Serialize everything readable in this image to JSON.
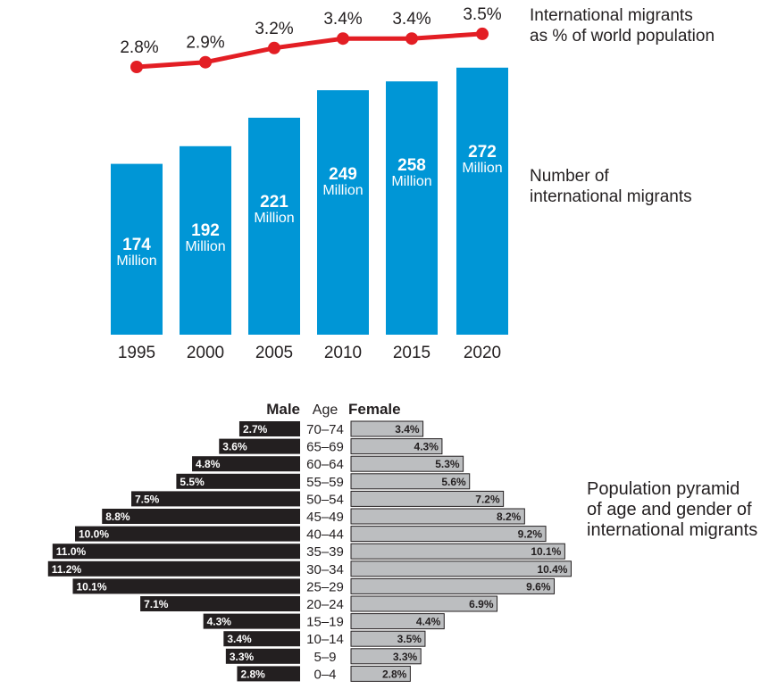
{
  "colors": {
    "bar": "#0096d6",
    "line": "#e31e24",
    "male": "#231f20",
    "female": "#bcbec0"
  },
  "chart_data": [
    {
      "type": "bar",
      "categories": [
        "1995",
        "2000",
        "2005",
        "2010",
        "2015",
        "2020"
      ],
      "values": [
        174,
        192,
        221,
        249,
        258,
        272
      ],
      "value_labels": [
        "174",
        "192",
        "221",
        "249",
        "258",
        "272"
      ],
      "unit_label": "Million",
      "series_label": "Number of international migrants",
      "ylim": [
        0,
        272
      ]
    },
    {
      "type": "line",
      "categories": [
        "1995",
        "2000",
        "2005",
        "2010",
        "2015",
        "2020"
      ],
      "values": [
        2.8,
        2.9,
        3.2,
        3.4,
        3.4,
        3.5
      ],
      "value_labels": [
        "2.8%",
        "2.9%",
        "3.2%",
        "3.4%",
        "3.4%",
        "3.5%"
      ],
      "series_label": "International migrants as % of world population"
    },
    {
      "type": "bar",
      "orientation": "horizontal-pyramid",
      "title": "Population pyramid of age and gender of international migrants",
      "male_header": "Male",
      "age_header": "Age",
      "female_header": "Female",
      "categories": [
        "70–74",
        "65–69",
        "60–64",
        "55–59",
        "50–54",
        "45–49",
        "40–44",
        "35–39",
        "30–34",
        "25–29",
        "20–24",
        "15–19",
        "10–14",
        "5–9",
        "0–4"
      ],
      "male": [
        2.7,
        3.6,
        4.8,
        5.5,
        7.5,
        8.8,
        10.0,
        11.0,
        11.2,
        10.1,
        7.1,
        4.3,
        3.4,
        3.3,
        2.8
      ],
      "female": [
        3.4,
        4.3,
        5.3,
        5.6,
        7.2,
        8.2,
        9.2,
        10.1,
        10.4,
        9.6,
        6.9,
        4.4,
        3.5,
        3.3,
        2.8
      ],
      "male_labels": [
        "2.7%",
        "3.6%",
        "4.8%",
        "5.5%",
        "7.5%",
        "8.8%",
        "10.0%",
        "11.0%",
        "11.2%",
        "10.1%",
        "7.1%",
        "4.3%",
        "3.4%",
        "3.3%",
        "2.8%"
      ],
      "female_labels": [
        "3.4%",
        "4.3%",
        "5.3%",
        "5.6%",
        "7.2%",
        "8.2%",
        "9.2%",
        "10.1%",
        "10.4%",
        "9.6%",
        "6.9%",
        "4.4%",
        "3.5%",
        "3.3%",
        "2.8%"
      ]
    }
  ],
  "labels": {
    "line_side": [
      "International migrants",
      "as % of world population"
    ],
    "bar_side": [
      "Number of",
      "international migrants"
    ],
    "pyramid_side": [
      "Population pyramid",
      "of age and gender of",
      "international migrants"
    ]
  }
}
